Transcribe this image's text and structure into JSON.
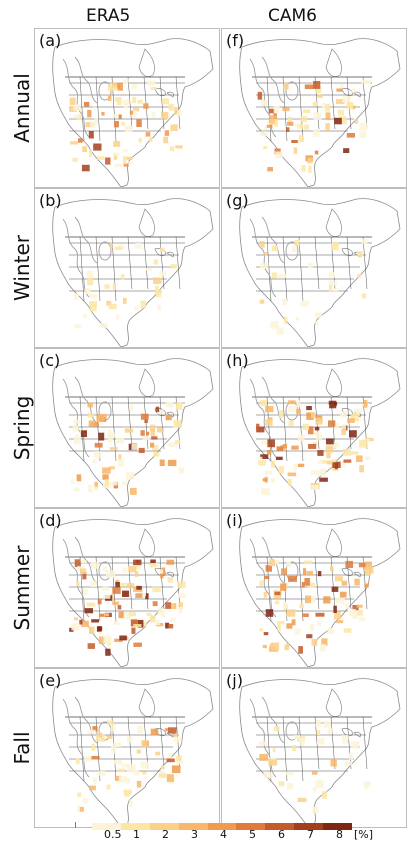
{
  "columns": [
    "ERA5",
    "CAM6"
  ],
  "rows": [
    {
      "label": "Annual",
      "panels": [
        "(a)",
        "(f)"
      ]
    },
    {
      "label": "Winter",
      "panels": [
        "(b)",
        "(g)"
      ]
    },
    {
      "label": "Spring",
      "panels": [
        "(c)",
        "(h)"
      ]
    },
    {
      "label": "Summer",
      "panels": [
        "(d)",
        "(i)"
      ]
    },
    {
      "label": "Fall",
      "panels": [
        "(e)",
        "(j)"
      ]
    }
  ],
  "colorbar": {
    "ticks": [
      "0.5",
      "1",
      "2",
      "3",
      "4",
      "5",
      "6",
      "7",
      "8"
    ],
    "unit": "[%]",
    "colors": [
      "#fdf4d8",
      "#fde6a4",
      "#fcd088",
      "#f8b66a",
      "#ef9a4e",
      "#df7a3a",
      "#c45b2a",
      "#a33e1d",
      "#7e2612"
    ]
  }
}
